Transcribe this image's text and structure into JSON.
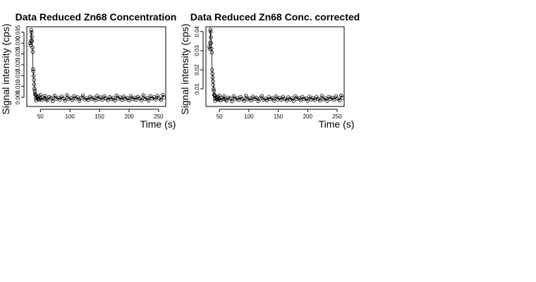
{
  "chart_data": [
    {
      "type": "scatter",
      "title": "Data Reduced Zn68 Concentration",
      "xlabel": "Time (s)",
      "ylabel": "Signal intensity (cps)",
      "xlim": [
        27,
        262
      ],
      "ylim": [
        0.0008,
        0.0375
      ],
      "xticks": [
        50,
        100,
        150,
        200,
        250
      ],
      "yticks": [
        0.005,
        0.01,
        0.015,
        0.02,
        0.025,
        0.03,
        0.035
      ],
      "ytick_labels": [
        "0.005",
        "0.010",
        "0.015",
        "0.020",
        "0.025",
        "0.030",
        "0.035"
      ],
      "grid": false,
      "line_overlay": true,
      "series": [
        {
          "x": [
            33,
            33.5,
            34,
            34.5,
            35,
            35.5,
            36,
            36.5,
            37,
            37.5,
            38,
            38.5,
            39,
            39.5,
            40,
            40.5,
            41,
            41.5,
            42,
            42.5,
            43,
            44,
            45,
            46,
            47,
            48,
            49,
            50,
            52,
            54,
            56,
            58,
            60,
            62,
            65,
            68,
            71,
            74,
            77,
            80,
            83,
            86,
            89,
            92,
            95,
            98,
            101,
            104,
            107,
            110,
            113,
            116,
            119,
            122,
            125,
            128,
            131,
            134,
            137,
            140,
            143,
            146,
            149,
            152,
            155,
            158,
            161,
            164,
            167,
            170,
            173,
            176,
            179,
            182,
            185,
            188,
            191,
            194,
            197,
            200,
            203,
            206,
            209,
            212,
            215,
            218,
            221,
            224,
            227,
            230,
            233,
            236,
            239,
            242,
            245,
            248,
            251,
            254,
            257,
            259
          ],
          "y": [
            0.03,
            0.029,
            0.031,
            0.036,
            0.035,
            0.033,
            0.031,
            0.028,
            0.026,
            0.018,
            0.017,
            0.015,
            0.013,
            0.011,
            0.009,
            0.008,
            0.0065,
            0.0062,
            0.0045,
            0.006,
            0.0035,
            0.0052,
            0.0048,
            0.0042,
            0.0055,
            0.004,
            0.0046,
            0.0061,
            0.0038,
            0.005,
            0.0044,
            0.0057,
            0.0041,
            0.0036,
            0.0052,
            0.0047,
            0.0033,
            0.0058,
            0.0043,
            0.0049,
            0.0039,
            0.0054,
            0.0045,
            0.0035,
            0.006,
            0.0042,
            0.0048,
            0.0037,
            0.0056,
            0.0044,
            0.0051,
            0.0034,
            0.0047,
            0.0059,
            0.004,
            0.0046,
            0.0038,
            0.0053,
            0.0043,
            0.0049,
            0.0036,
            0.0057,
            0.0042,
            0.005,
            0.0039,
            0.0055,
            0.0045,
            0.0037,
            0.0052,
            0.0041,
            0.0048,
            0.0035,
            0.0058,
            0.0044,
            0.005,
            0.0038,
            0.0054,
            0.0043,
            0.0047,
            0.0036,
            0.0056,
            0.0041,
            0.0049,
            0.0039,
            0.0053,
            0.0045,
            0.0037,
            0.006,
            0.0042,
            0.0048,
            0.0035,
            0.0055,
            0.0044,
            0.0051,
            0.004,
            0.0057,
            0.0046,
            0.0038,
            0.0062,
            0.005
          ]
        }
      ]
    },
    {
      "type": "scatter",
      "title": "Data Reduced Zn68 Conc. corrected",
      "xlabel": "Time (s)",
      "ylabel": "Signal intensity (cps)",
      "xlim": [
        27,
        262
      ],
      "ylim": [
        0.0008,
        0.0425
      ],
      "xticks": [
        50,
        100,
        150,
        200,
        250
      ],
      "yticks": [
        0.01,
        0.02,
        0.03,
        0.04
      ],
      "ytick_labels": [
        "0.01",
        "0.02",
        "0.03",
        "0.04"
      ],
      "grid": false,
      "line_overlay": true,
      "series": [
        {
          "x": [
            33,
            33.5,
            34,
            34.5,
            35,
            35.5,
            36,
            36.5,
            37,
            37.5,
            38,
            38.5,
            39,
            39.5,
            40,
            40.5,
            41,
            41.5,
            42,
            42.5,
            43,
            44,
            45,
            46,
            47,
            48,
            49,
            50,
            52,
            54,
            56,
            58,
            60,
            62,
            65,
            68,
            71,
            74,
            77,
            80,
            83,
            86,
            89,
            92,
            95,
            98,
            101,
            104,
            107,
            110,
            113,
            116,
            119,
            122,
            125,
            128,
            131,
            134,
            137,
            140,
            143,
            146,
            149,
            152,
            155,
            158,
            161,
            164,
            167,
            170,
            173,
            176,
            179,
            182,
            185,
            188,
            191,
            194,
            197,
            200,
            203,
            206,
            209,
            212,
            215,
            218,
            221,
            224,
            227,
            230,
            233,
            236,
            239,
            242,
            245,
            248,
            251,
            254,
            257,
            259
          ],
          "y": [
            0.032,
            0.031,
            0.034,
            0.041,
            0.04,
            0.037,
            0.034,
            0.031,
            0.029,
            0.02,
            0.018,
            0.016,
            0.014,
            0.012,
            0.01,
            0.009,
            0.007,
            0.0066,
            0.0048,
            0.0064,
            0.0037,
            0.0056,
            0.0051,
            0.0045,
            0.0059,
            0.0043,
            0.0049,
            0.0065,
            0.004,
            0.0053,
            0.0047,
            0.0061,
            0.0044,
            0.0038,
            0.0055,
            0.005,
            0.0035,
            0.0062,
            0.0046,
            0.0052,
            0.0042,
            0.0058,
            0.0048,
            0.0037,
            0.0064,
            0.0045,
            0.0051,
            0.0039,
            0.006,
            0.0047,
            0.0054,
            0.0036,
            0.005,
            0.0063,
            0.0043,
            0.0049,
            0.004,
            0.0057,
            0.0046,
            0.0052,
            0.0038,
            0.0061,
            0.0045,
            0.0053,
            0.0042,
            0.0059,
            0.0048,
            0.0039,
            0.0056,
            0.0044,
            0.0051,
            0.0037,
            0.0062,
            0.0047,
            0.0053,
            0.004,
            0.0058,
            0.0046,
            0.005,
            0.0038,
            0.006,
            0.0044,
            0.0052,
            0.0042,
            0.0057,
            0.0048,
            0.0039,
            0.0064,
            0.0045,
            0.0051,
            0.0037,
            0.0059,
            0.0047,
            0.0054,
            0.0043,
            0.0061,
            0.0049,
            0.004,
            0.0066,
            0.0053
          ]
        }
      ]
    }
  ]
}
